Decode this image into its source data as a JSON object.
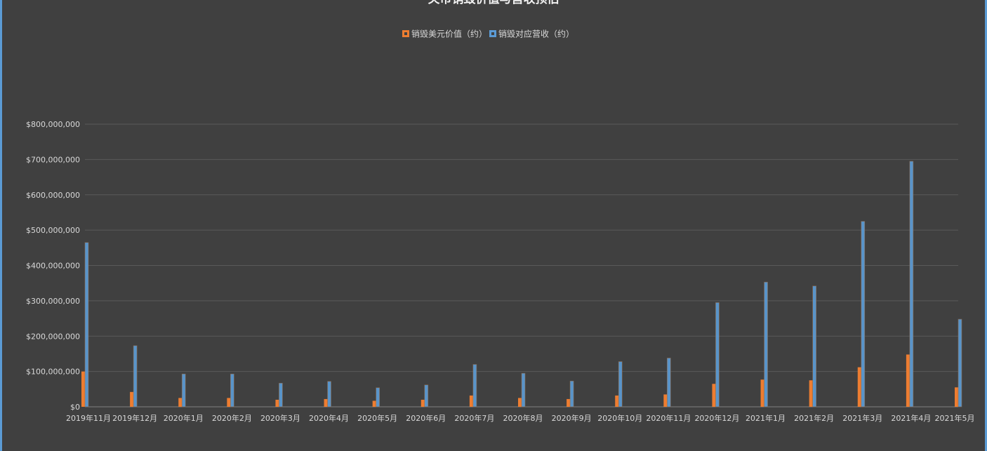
{
  "chart_data": {
    "type": "bar",
    "title": "关币销毁价值与营收预估",
    "categories": [
      "2019年11月",
      "2019年12月",
      "2020年1月",
      "2020年2月",
      "2020年3月",
      "2020年4月",
      "2020年5月",
      "2020年6月",
      "2020年7月",
      "2020年8月",
      "2020年9月",
      "2020年10月",
      "2020年11月",
      "2020年12月",
      "2021年1月",
      "2021年2月",
      "2021年3月",
      "2021年4月",
      "2021年5月"
    ],
    "series": [
      {
        "name": "销毁美元价值（约）",
        "color": "#ed7d31",
        "values": [
          100000000,
          42000000,
          25000000,
          25000000,
          20000000,
          22000000,
          17000000,
          20000000,
          32000000,
          25000000,
          22000000,
          32000000,
          35000000,
          65000000,
          77000000,
          75000000,
          112000000,
          148000000,
          55000000
        ]
      },
      {
        "name": "销毁对应营收（约）",
        "color": "#5b9bd5",
        "values": [
          465000000,
          173000000,
          93000000,
          93000000,
          67000000,
          72000000,
          54000000,
          62000000,
          120000000,
          95000000,
          73000000,
          128000000,
          138000000,
          295000000,
          353000000,
          342000000,
          525000000,
          695000000,
          248000000
        ]
      }
    ],
    "yticks": [
      "$0",
      "$100,000,000",
      "$200,000,000",
      "$300,000,000",
      "$400,000,000",
      "$500,000,000",
      "$600,000,000",
      "$700,000,000",
      "$800,000,000"
    ],
    "ylim": [
      0,
      800000000
    ],
    "grid": true,
    "legend_position": "top"
  }
}
